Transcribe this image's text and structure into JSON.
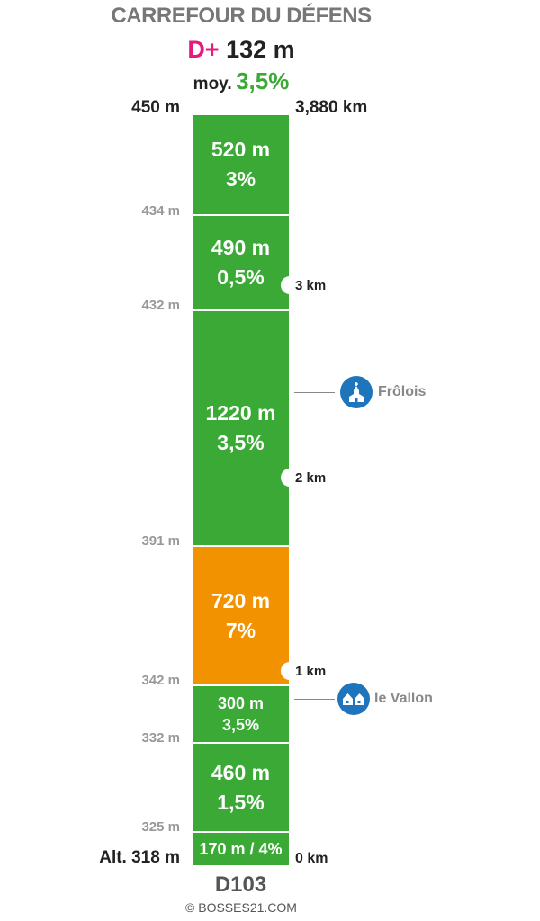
{
  "header": {
    "title": "CARREFOUR DU DÉFENS",
    "gain_prefix": "D+",
    "gain_value": "132 m",
    "avg_label": "moy.",
    "avg_value": "3,5%"
  },
  "scale": {
    "top_altitude": "450 m",
    "top_distance": "3,880 km",
    "bottom_altitude": "Alt. 318 m",
    "bottom_distance": "0 km"
  },
  "altitude_marks": [
    "434 m",
    "432 m",
    "391 m",
    "342 m",
    "332 m",
    "325 m"
  ],
  "segments": [
    {
      "length": "520 m",
      "grade": "3%",
      "color": "green"
    },
    {
      "length": "490 m",
      "grade": "0,5%",
      "color": "green"
    },
    {
      "length": "1220 m",
      "grade": "3,5%",
      "color": "green"
    },
    {
      "length": "720 m",
      "grade": "7%",
      "color": "orange"
    },
    {
      "length": "300 m",
      "grade": "3,5%",
      "color": "green"
    },
    {
      "length": "460 m",
      "grade": "1,5%",
      "color": "green"
    },
    {
      "length": "170 m",
      "grade": "4%",
      "label": "170 m / 4%",
      "color": "green"
    }
  ],
  "km_markers": [
    "3 km",
    "2 km",
    "1 km"
  ],
  "places": [
    {
      "name": "Frôlois",
      "icon": "church-icon"
    },
    {
      "name": "le Vallon",
      "icon": "houses-icon"
    }
  ],
  "road": "D103",
  "copyright": "© BOSSES21.COM",
  "colors": {
    "green": "#3aa935",
    "orange": "#f39200",
    "accent": "#e8197d",
    "poi": "#1f75bb"
  }
}
